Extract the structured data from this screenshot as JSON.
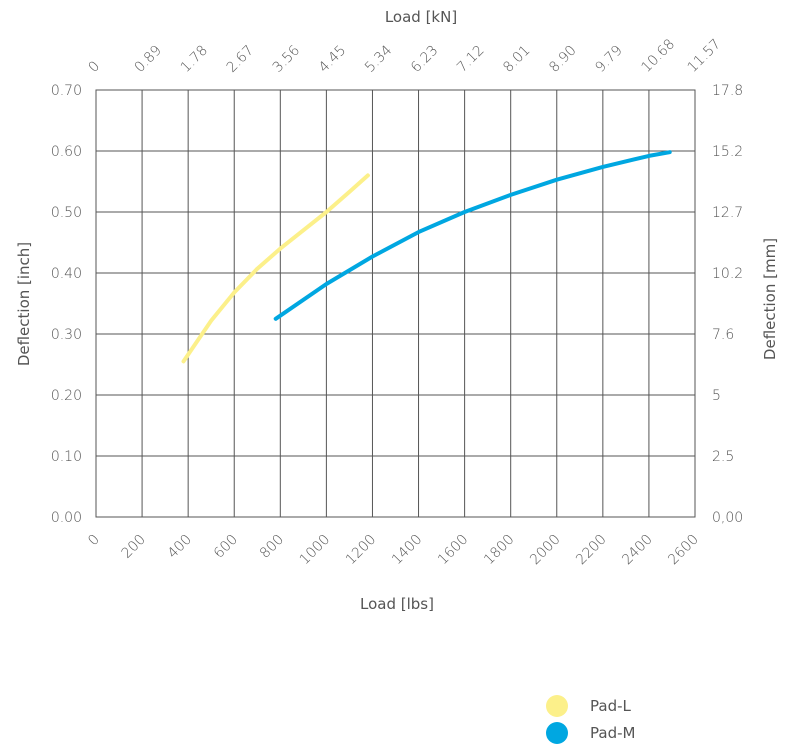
{
  "chart_data": {
    "type": "line",
    "xlabel_bottom": "Load [lbs]",
    "xlabel_top": "Load [kN]",
    "ylabel_left": "Deflection [inch]",
    "ylabel_right": "Deflection [mm]",
    "xlim": [
      0,
      2600
    ],
    "ylim": [
      0,
      0.7
    ],
    "x_ticks_bottom": [
      "0",
      "200",
      "400",
      "600",
      "800",
      "1000",
      "1200",
      "1400",
      "1600",
      "1800",
      "2000",
      "2200",
      "2400",
      "2600"
    ],
    "x_ticks_top": [
      "0",
      "0.89",
      "1.78",
      "2.67",
      "3.56",
      "4.45",
      "5.34",
      "6.23",
      "7.12",
      "8.01",
      "8.90",
      "9.79",
      "10.68",
      "11.57"
    ],
    "y_ticks_left": [
      "0.00",
      "0.10",
      "0.20",
      "0.30",
      "0.40",
      "0.50",
      "0.60",
      "0.70"
    ],
    "y_ticks_right": [
      "0,00",
      "2.5",
      "5",
      "7.6",
      "10.2",
      "12.7",
      "15.2",
      "17.8"
    ],
    "grid": true,
    "legend_position": "bottom-right",
    "series": [
      {
        "name": "Pad-L",
        "color": "#fcf08a",
        "x": [
          380,
          500,
          600,
          700,
          800,
          900,
          1000,
          1100,
          1180
        ],
        "y": [
          0.255,
          0.322,
          0.368,
          0.407,
          0.44,
          0.47,
          0.5,
          0.533,
          0.56
        ]
      },
      {
        "name": "Pad-M",
        "color": "#00a7e1",
        "x": [
          780,
          1000,
          1200,
          1400,
          1600,
          1800,
          2000,
          2200,
          2400,
          2490
        ],
        "y": [
          0.325,
          0.382,
          0.427,
          0.467,
          0.5,
          0.528,
          0.553,
          0.574,
          0.592,
          0.598
        ]
      }
    ]
  }
}
